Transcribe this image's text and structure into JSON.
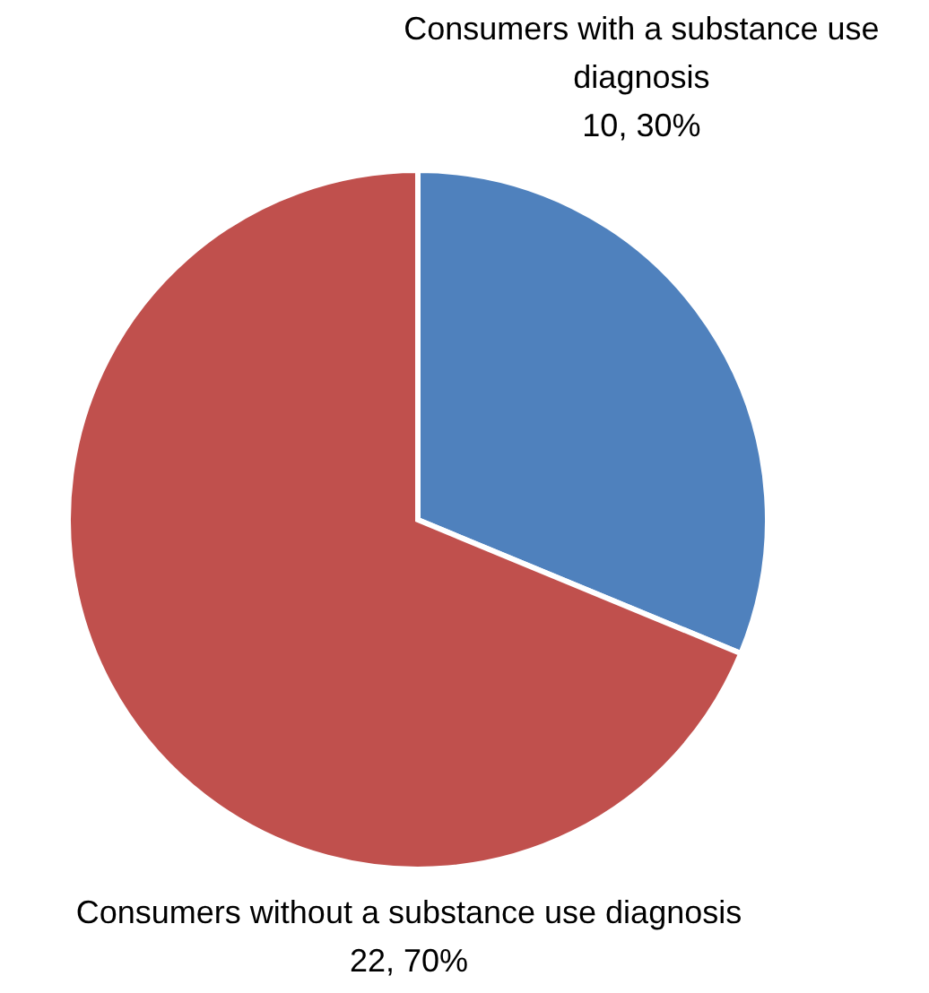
{
  "chart_data": {
    "type": "pie",
    "categories": [
      "Consumers with a substance use diagnosis",
      "Consumers without a substance use diagnosis"
    ],
    "values": [
      10,
      22
    ],
    "colors": [
      "#4f81bd",
      "#c0504d"
    ],
    "value_labels": [
      "10, 30%",
      "22, 70%"
    ],
    "legend": false
  }
}
